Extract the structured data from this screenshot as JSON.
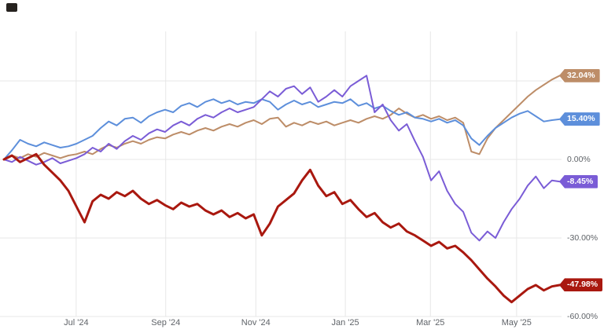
{
  "chart": {
    "title": "",
    "background": "#ffffff",
    "gridline_color": "#e7e7e7",
    "axis_text_color": "#5f6368"
  },
  "chart_data": {
    "type": "line",
    "title": "",
    "xlabel": "",
    "ylabel": "",
    "unit": "%",
    "grid": true,
    "legend_position": "none (end-of-line value badges on right axis)",
    "x_ticks": [
      {
        "label": "Jul '24",
        "f": 0.13
      },
      {
        "label": "Sep '24",
        "f": 0.291
      },
      {
        "label": "Nov '24",
        "f": 0.453
      },
      {
        "label": "Jan '25",
        "f": 0.614
      },
      {
        "label": "Mar '25",
        "f": 0.767
      },
      {
        "label": "May '25",
        "f": 0.922
      }
    ],
    "y_axis": {
      "min": -60,
      "max": 35,
      "gridline_values": [
        30,
        0,
        -30,
        -60
      ],
      "labels": [
        {
          "text": "0.00%",
          "v": 0
        },
        {
          "text": "-30.00%",
          "v": -30
        },
        {
          "text": "-60.00%",
          "v": -60
        }
      ]
    },
    "series": [
      {
        "name": "tan",
        "color": "#bd8d68",
        "end_label": "32.04%",
        "line_width": 2,
        "values": [
          0.0,
          1.5,
          0.5,
          2.0,
          1.0,
          2.5,
          1.5,
          0.5,
          1.5,
          2.0,
          3.0,
          2.0,
          4.0,
          5.5,
          4.5,
          6.0,
          7.0,
          6.0,
          7.5,
          8.5,
          8.0,
          9.5,
          10.5,
          9.5,
          11.0,
          12.0,
          11.0,
          12.5,
          13.5,
          12.5,
          14.0,
          15.0,
          13.5,
          15.5,
          16.0,
          12.5,
          14.0,
          13.0,
          14.5,
          13.5,
          14.5,
          13.0,
          14.0,
          15.0,
          14.0,
          15.5,
          16.5,
          15.5,
          17.0,
          19.5,
          17.5,
          16.0,
          17.0,
          15.5,
          16.5,
          15.0,
          16.0,
          14.0,
          3.0,
          2.0,
          8.0,
          12.0,
          15.0,
          18.0,
          21.0,
          24.0,
          26.5,
          28.5,
          30.5,
          32.04
        ]
      },
      {
        "name": "blue",
        "color": "#5d8fdb",
        "end_label": "15.40%",
        "line_width": 2,
        "values": [
          0.0,
          3.5,
          7.5,
          6.0,
          5.0,
          6.5,
          5.5,
          4.5,
          5.0,
          6.0,
          7.5,
          9.0,
          12.0,
          14.5,
          13.0,
          15.5,
          16.0,
          14.0,
          16.5,
          18.0,
          19.0,
          18.0,
          20.5,
          21.5,
          20.0,
          22.0,
          23.0,
          21.5,
          22.5,
          21.0,
          22.0,
          21.5,
          23.0,
          22.0,
          19.0,
          21.0,
          22.5,
          21.0,
          22.0,
          20.0,
          21.0,
          22.0,
          21.5,
          23.0,
          20.5,
          21.5,
          19.5,
          20.5,
          18.5,
          17.0,
          18.0,
          16.0,
          15.5,
          14.5,
          15.5,
          14.0,
          15.0,
          13.0,
          8.0,
          5.5,
          9.0,
          12.0,
          14.0,
          16.0,
          17.5,
          18.5,
          16.5,
          14.5,
          15.0,
          15.4
        ]
      },
      {
        "name": "purple",
        "color": "#7a5cd6",
        "end_label": "-8.45%",
        "line_width": 2,
        "values": [
          0.0,
          -1.0,
          1.0,
          -0.5,
          -2.0,
          -1.0,
          0.5,
          -1.5,
          -0.5,
          0.5,
          2.0,
          4.5,
          3.0,
          6.0,
          4.0,
          7.0,
          9.0,
          7.5,
          10.0,
          11.5,
          10.5,
          13.0,
          14.5,
          13.0,
          15.5,
          17.0,
          16.0,
          18.0,
          19.5,
          18.0,
          19.0,
          20.0,
          23.0,
          26.0,
          24.0,
          27.0,
          28.0,
          25.0,
          27.5,
          22.0,
          24.0,
          26.5,
          24.0,
          28.0,
          30.0,
          32.0,
          18.0,
          21.0,
          15.0,
          11.0,
          13.5,
          7.0,
          1.0,
          -8.0,
          -4.5,
          -12.0,
          -17.0,
          -20.0,
          -28.0,
          -31.0,
          -27.5,
          -30.0,
          -24.0,
          -19.0,
          -15.0,
          -10.0,
          -6.5,
          -11.0,
          -8.0,
          -8.45
        ]
      },
      {
        "name": "red",
        "color": "#a9180f",
        "end_label": "-47.98%",
        "line_width": 3,
        "values": [
          0.0,
          1.5,
          -1.0,
          0.5,
          2.0,
          -2.0,
          -5.0,
          -8.0,
          -12.0,
          -18.0,
          -24.0,
          -16.0,
          -13.5,
          -15.0,
          -12.5,
          -14.0,
          -12.0,
          -15.0,
          -17.0,
          -15.5,
          -17.5,
          -19.0,
          -16.5,
          -18.0,
          -17.0,
          -19.5,
          -21.0,
          -19.5,
          -22.0,
          -20.5,
          -22.5,
          -21.0,
          -29.0,
          -24.5,
          -18.0,
          -15.5,
          -13.0,
          -8.0,
          -4.0,
          -10.0,
          -14.0,
          -12.5,
          -17.0,
          -15.5,
          -19.0,
          -22.0,
          -20.5,
          -24.0,
          -26.0,
          -24.5,
          -27.5,
          -29.0,
          -31.0,
          -33.0,
          -31.5,
          -34.0,
          -33.0,
          -35.5,
          -38.5,
          -42.0,
          -45.5,
          -48.5,
          -52.0,
          -54.5,
          -52.0,
          -49.5,
          -48.0,
          -50.0,
          -48.5,
          -47.98
        ]
      }
    ]
  }
}
